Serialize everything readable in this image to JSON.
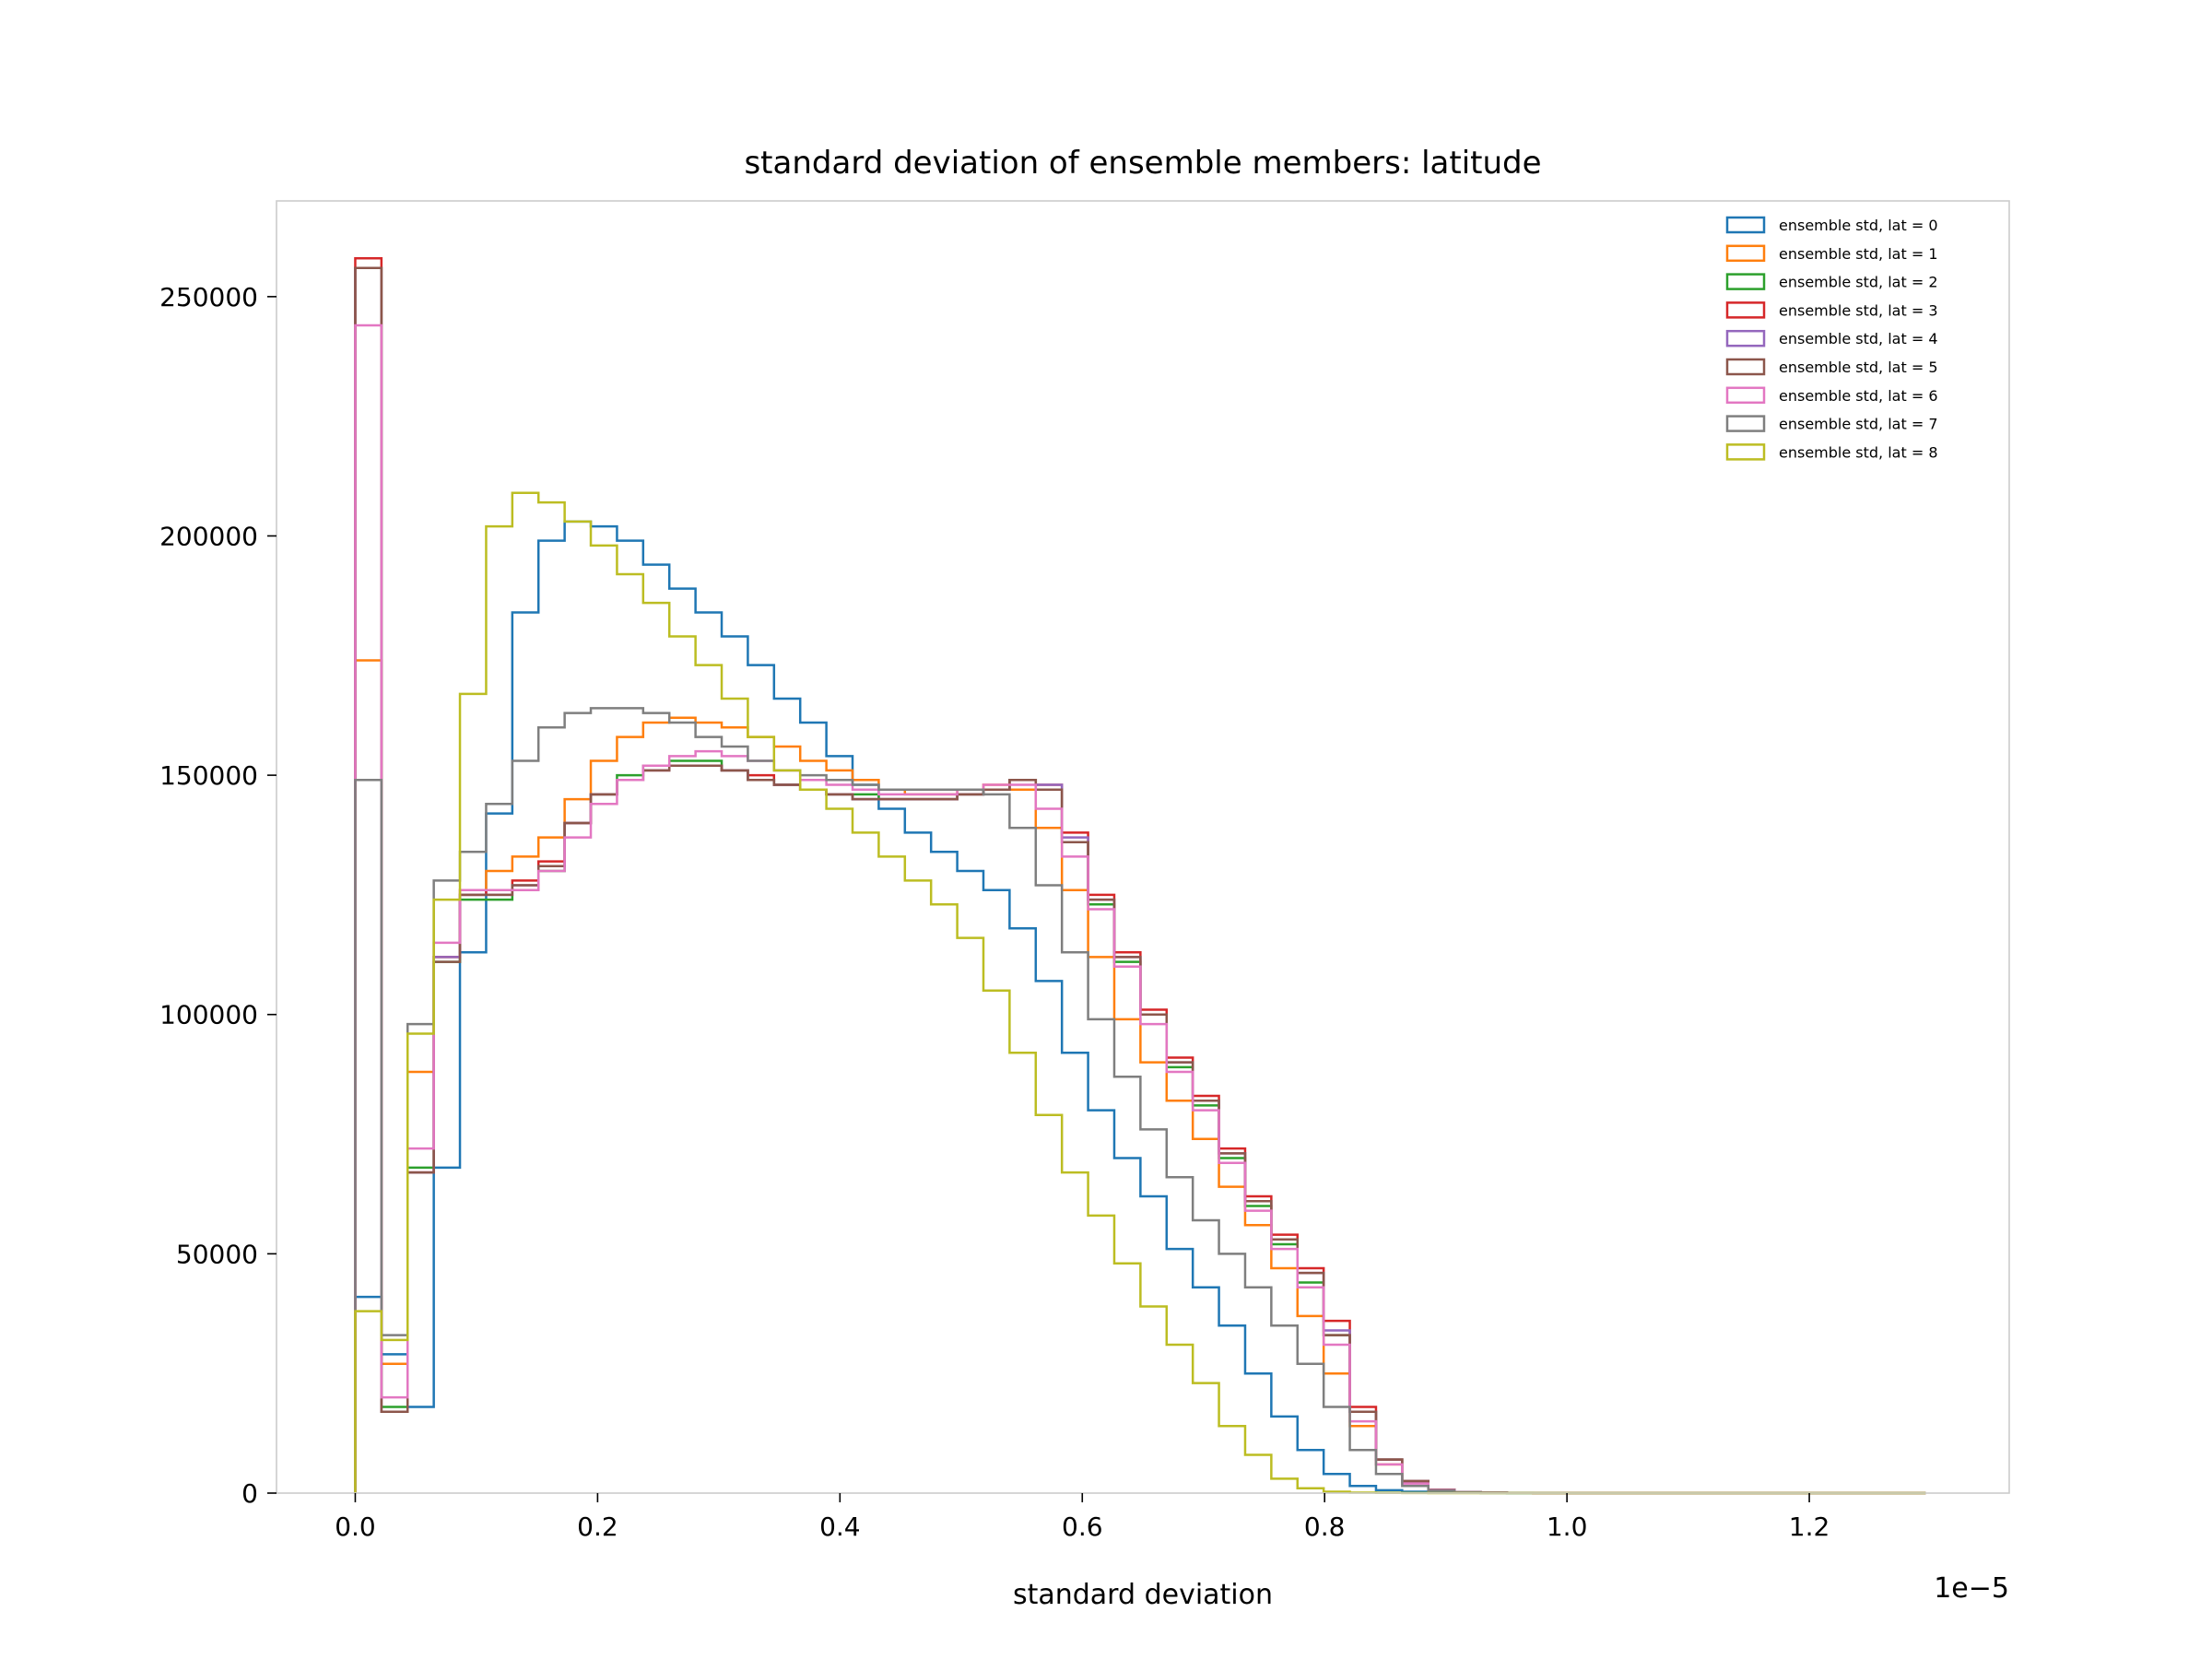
{
  "chart_data": {
    "type": "histogram",
    "title": "standard deviation of ensemble members: latitude",
    "xlabel": "standard deviation",
    "ylabel": "",
    "x_offset_text": "1e−5",
    "x_multiplier": 1e-05,
    "xlim": [
      -0.065,
      1.365
    ],
    "ylim": [
      0,
      270000
    ],
    "xticks": [
      0.0,
      0.2,
      0.4,
      0.6,
      0.8,
      1.0,
      1.2
    ],
    "xtick_labels": [
      "0.0",
      "0.2",
      "0.4",
      "0.6",
      "0.8",
      "1.0",
      "1.2"
    ],
    "yticks": [
      0,
      50000,
      100000,
      150000,
      200000,
      250000
    ],
    "ytick_labels": [
      "0",
      "50000",
      "100000",
      "150000",
      "200000",
      "250000"
    ],
    "grid": false,
    "legend_position": "top-right",
    "bin_start": 0.0,
    "bin_width": 0.0216,
    "series": [
      {
        "name": "ensemble std, lat = 0",
        "color": "#1f77b4",
        "values": [
          41000,
          29000,
          18000,
          68000,
          113000,
          142000,
          184000,
          199000,
          203000,
          202000,
          199000,
          194000,
          189000,
          184000,
          179000,
          173000,
          166000,
          161000,
          154000,
          148000,
          143000,
          138000,
          134000,
          130000,
          126000,
          118000,
          107000,
          92000,
          80000,
          70000,
          62000,
          51000,
          43000,
          35000,
          25000,
          16000,
          9000,
          4000,
          1500,
          600,
          300,
          100,
          50,
          20,
          10,
          5,
          0,
          0,
          0,
          0,
          0,
          0,
          0,
          0,
          0,
          0,
          0,
          0,
          0,
          0
        ]
      },
      {
        "name": "ensemble std, lat = 1",
        "color": "#ff7f0e",
        "values": [
          174000,
          27000,
          88000,
          112000,
          126000,
          130000,
          133000,
          137000,
          145000,
          153000,
          158000,
          161000,
          162000,
          161000,
          160000,
          158000,
          156000,
          153000,
          151000,
          149000,
          147000,
          146000,
          146000,
          147000,
          148000,
          147000,
          139000,
          126000,
          112000,
          99000,
          90000,
          82000,
          74000,
          64000,
          56000,
          47000,
          37000,
          25000,
          14000,
          6000,
          2500,
          700,
          200,
          100,
          50,
          20,
          10,
          0,
          0,
          0,
          0,
          0,
          0,
          0,
          0,
          0,
          0,
          0,
          0,
          0
        ]
      },
      {
        "name": "ensemble std, lat = 2",
        "color": "#2ca02c",
        "values": [
          256000,
          18000,
          68000,
          111000,
          124000,
          124000,
          126000,
          130000,
          140000,
          146000,
          150000,
          152000,
          153000,
          153000,
          151000,
          149000,
          148000,
          147000,
          146000,
          146000,
          145000,
          145000,
          145000,
          146000,
          147000,
          149000,
          147000,
          136000,
          123000,
          111000,
          100000,
          89000,
          81000,
          70000,
          60000,
          52000,
          44000,
          33000,
          17000,
          7000,
          2500,
          700,
          200,
          100,
          50,
          20,
          0,
          0,
          0,
          0,
          0,
          0,
          0,
          0,
          0,
          0,
          0,
          0,
          0,
          0
        ]
      },
      {
        "name": "ensemble std, lat = 3",
        "color": "#d62728",
        "values": [
          258000,
          17000,
          67000,
          112000,
          125000,
          126000,
          128000,
          132000,
          140000,
          146000,
          149000,
          151000,
          152000,
          152000,
          151000,
          150000,
          148000,
          147000,
          146000,
          145000,
          145000,
          145000,
          145000,
          146000,
          147000,
          149000,
          148000,
          138000,
          125000,
          113000,
          101000,
          91000,
          83000,
          72000,
          62000,
          54000,
          47000,
          36000,
          18000,
          7000,
          2500,
          700,
          200,
          100,
          50,
          20,
          0,
          0,
          0,
          0,
          0,
          0,
          0,
          0,
          0,
          0,
          0,
          0,
          0,
          0
        ]
      },
      {
        "name": "ensemble std, lat = 4",
        "color": "#9467bd",
        "values": [
          256000,
          17000,
          67000,
          112000,
          125000,
          125000,
          127000,
          131000,
          140000,
          146000,
          149000,
          151000,
          152000,
          152000,
          151000,
          149000,
          148000,
          147000,
          146000,
          145000,
          145000,
          145000,
          145000,
          146000,
          147000,
          149000,
          148000,
          137000,
          124000,
          112000,
          100000,
          90000,
          82000,
          71000,
          61000,
          53000,
          46000,
          34000,
          17000,
          7000,
          2500,
          700,
          200,
          100,
          50,
          20,
          0,
          0,
          0,
          0,
          0,
          0,
          0,
          0,
          0,
          0,
          0,
          0,
          0,
          0
        ]
      },
      {
        "name": "ensemble std, lat = 5",
        "color": "#8c564b",
        "values": [
          256000,
          17000,
          67000,
          111000,
          125000,
          125000,
          127000,
          131000,
          140000,
          146000,
          149000,
          151000,
          152000,
          152000,
          151000,
          149000,
          148000,
          147000,
          146000,
          145000,
          145000,
          145000,
          145000,
          146000,
          147000,
          149000,
          147000,
          136000,
          124000,
          112000,
          100000,
          90000,
          82000,
          71000,
          61000,
          53000,
          46000,
          33000,
          17000,
          7000,
          2500,
          700,
          200,
          100,
          50,
          20,
          0,
          0,
          0,
          0,
          0,
          0,
          0,
          0,
          0,
          0,
          0,
          0,
          0,
          0
        ]
      },
      {
        "name": "ensemble std, lat = 6",
        "color": "#e377c2",
        "values": [
          244000,
          20000,
          72000,
          115000,
          126000,
          126000,
          126000,
          130000,
          137000,
          144000,
          149000,
          152000,
          154000,
          155000,
          154000,
          153000,
          151000,
          149000,
          148000,
          147000,
          146000,
          146000,
          146000,
          147000,
          148000,
          148000,
          143000,
          133000,
          122000,
          110000,
          98000,
          88000,
          80000,
          69000,
          59000,
          51000,
          43000,
          31000,
          15000,
          6000,
          2000,
          600,
          200,
          100,
          50,
          20,
          0,
          0,
          0,
          0,
          0,
          0,
          0,
          0,
          0,
          0,
          0,
          0,
          0,
          0
        ]
      },
      {
        "name": "ensemble std, lat = 7",
        "color": "#7f7f7f",
        "values": [
          149000,
          33000,
          98000,
          128000,
          134000,
          144000,
          153000,
          160000,
          163000,
          164000,
          164000,
          163000,
          161000,
          158000,
          156000,
          153000,
          151000,
          150000,
          149000,
          148000,
          147000,
          147000,
          147000,
          147000,
          146000,
          139000,
          127000,
          113000,
          99000,
          87000,
          76000,
          66000,
          57000,
          50000,
          43000,
          35000,
          27000,
          18000,
          9000,
          4000,
          1500,
          500,
          200,
          100,
          50,
          20,
          0,
          0,
          0,
          0,
          0,
          0,
          0,
          0,
          0,
          0,
          0,
          0,
          0,
          0
        ]
      },
      {
        "name": "ensemble std, lat = 8",
        "color": "#bcbd22",
        "values": [
          38000,
          32000,
          96000,
          124000,
          167000,
          202000,
          209000,
          207000,
          203000,
          198000,
          192000,
          186000,
          179000,
          173000,
          166000,
          158000,
          151000,
          147000,
          143000,
          138000,
          133000,
          128000,
          123000,
          116000,
          105000,
          92000,
          79000,
          67000,
          58000,
          48000,
          39000,
          31000,
          23000,
          14000,
          8000,
          3000,
          1000,
          300,
          100,
          50,
          20,
          0,
          0,
          0,
          0,
          0,
          0,
          0,
          0,
          0,
          0,
          0,
          0,
          0,
          0,
          0,
          0,
          0,
          0,
          0
        ]
      }
    ]
  }
}
